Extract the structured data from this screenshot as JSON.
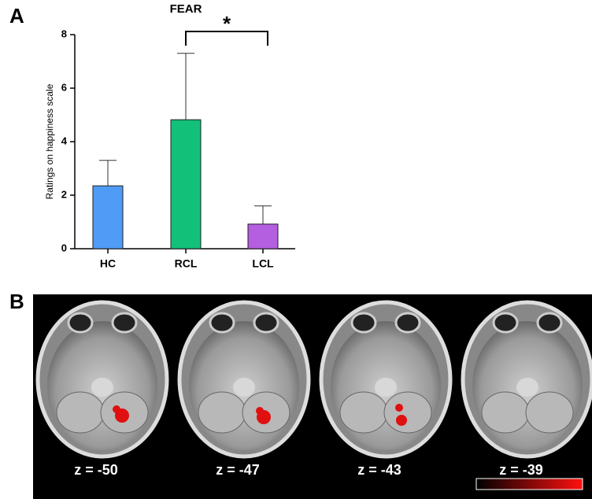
{
  "panel_labels": [
    "A",
    "B"
  ],
  "chart_data": {
    "type": "bar",
    "title": "FEAR",
    "y_label": "Ratings on happiness scale",
    "categories": [
      "HC",
      "RCL",
      "LCL"
    ],
    "values": [
      2.35,
      4.82,
      0.92
    ],
    "errors": [
      0.95,
      2.48,
      0.68
    ],
    "colors": [
      "#4f9bf5",
      "#12c07a",
      "#b45ee0"
    ],
    "ylim": [
      0,
      8
    ],
    "yticks": [
      0,
      2,
      4,
      6,
      8
    ],
    "significance": {
      "label": "*",
      "categories": [
        "RCL",
        "LCL"
      ]
    }
  },
  "brain_slices": [
    {
      "label": "z = -50"
    },
    {
      "label": "z = -47"
    },
    {
      "label": "z = -43"
    },
    {
      "label": "z = -39"
    }
  ]
}
